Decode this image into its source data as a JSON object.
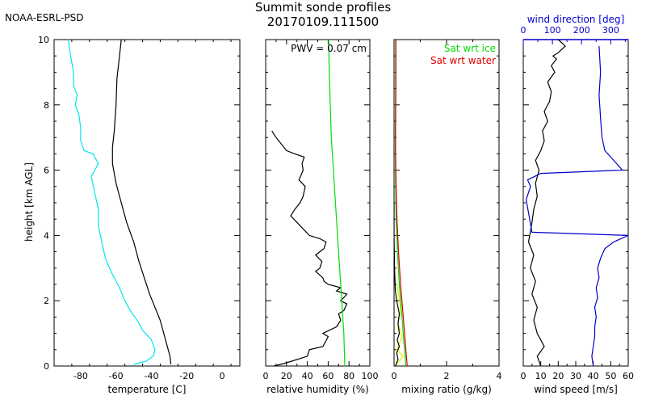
{
  "header": {
    "org_label": "NOAA-ESRL-PSD",
    "title_line1": "Summit sonde profiles",
    "title_line2": "20170109.111500"
  },
  "colors": {
    "axis": "#000000",
    "dewpoint": "#00e5ee",
    "sat_ice": "#00dd00",
    "sat_water": "#dd0000",
    "mixing": "#e8e800",
    "wind_dir": "#0000cc"
  },
  "chart_data": [
    {
      "type": "line",
      "xlabel": "temperature [C]",
      "ylabel": "height [km AGL]",
      "xlim": [
        -95,
        10
      ],
      "ylim": [
        0,
        10
      ],
      "xticks": [
        -80,
        -60,
        -40,
        -20,
        0
      ],
      "yticks": [
        0,
        2,
        4,
        6,
        8,
        10
      ],
      "series": [
        {
          "color": "#000000",
          "x": [
            -29,
            -29.5,
            -31,
            -33,
            -35,
            -38,
            -41,
            -44,
            -47,
            -50,
            -54,
            -57,
            -60,
            -62,
            -62,
            -61,
            -60,
            -59.5,
            -58,
            -57
          ],
          "y": [
            0.05,
            0.3,
            0.6,
            1.0,
            1.4,
            1.8,
            2.2,
            2.7,
            3.2,
            3.8,
            4.4,
            5.0,
            5.6,
            6.2,
            6.7,
            7.2,
            8.0,
            8.8,
            9.5,
            10.0
          ]
        },
        {
          "color": "#00e5ee",
          "x": [
            -50,
            -43,
            -39,
            -38,
            -40,
            -45,
            -48,
            -52,
            -55,
            -58,
            -62,
            -66,
            -68,
            -70,
            -70,
            -72,
            -74,
            -70,
            -73,
            -78,
            -80,
            -80,
            -81,
            -83,
            -82,
            -84,
            -84,
            -85,
            -86,
            -87
          ],
          "y": [
            0.05,
            0.15,
            0.3,
            0.5,
            0.8,
            1.1,
            1.4,
            1.7,
            2.0,
            2.4,
            2.8,
            3.3,
            3.8,
            4.3,
            4.8,
            5.3,
            5.8,
            6.2,
            6.5,
            6.6,
            6.9,
            7.3,
            7.7,
            8.0,
            8.3,
            8.6,
            9.0,
            9.3,
            9.6,
            10.0
          ]
        }
      ]
    },
    {
      "type": "line",
      "xlabel": "relative humidity (%)",
      "annotation": "PWV = 0.07 cm",
      "xlim": [
        0,
        100
      ],
      "ylim": [
        0,
        10
      ],
      "xticks": [
        0,
        20,
        40,
        60,
        80,
        100
      ],
      "xticklabels": [
        "0",
        "20",
        "40",
        "60",
        "80",
        "100"
      ],
      "series": [
        {
          "color": "#000000",
          "x": [
            8,
            20,
            40,
            42,
            55,
            60,
            55,
            68,
            72,
            70,
            75,
            78,
            72,
            75,
            78,
            68,
            72,
            60,
            56,
            55,
            48,
            52,
            54,
            48,
            56,
            58,
            52,
            42,
            36,
            30,
            24,
            28,
            33,
            36,
            38,
            32,
            36,
            35,
            37,
            28,
            20,
            10,
            6
          ],
          "y": [
            0.0,
            0.1,
            0.3,
            0.5,
            0.6,
            0.9,
            1.0,
            1.2,
            1.4,
            1.6,
            1.7,
            1.9,
            2.0,
            2.1,
            2.2,
            2.3,
            2.4,
            2.5,
            2.6,
            2.7,
            2.9,
            3.0,
            3.2,
            3.4,
            3.6,
            3.8,
            3.9,
            4.0,
            4.2,
            4.4,
            4.6,
            4.8,
            5.0,
            5.2,
            5.5,
            5.7,
            6.0,
            6.2,
            6.4,
            6.5,
            6.6,
            7.0,
            7.2
          ]
        },
        {
          "color": "#00dd00",
          "x": [
            76,
            75,
            73,
            71,
            69,
            67,
            65,
            63,
            62,
            61,
            60.5
          ],
          "y": [
            0,
            1,
            2,
            3,
            4,
            5,
            6,
            7,
            8,
            9,
            10
          ]
        }
      ]
    },
    {
      "type": "line",
      "xlabel": "mixing ratio (g/kg)",
      "legend": [
        "Sat wrt ice",
        "Sat wrt water"
      ],
      "xlim": [
        0,
        4
      ],
      "ylim": [
        0,
        10
      ],
      "xticks": [
        0,
        2,
        4
      ],
      "series": [
        {
          "name": "Sat wrt ice",
          "color": "#00dd00",
          "x": [
            0.45,
            0.4,
            0.3,
            0.2,
            0.13,
            0.08,
            0.06,
            0.05,
            0.05,
            0.06,
            0.06
          ],
          "y": [
            0,
            0.5,
            1.5,
            2.5,
            3.5,
            4.5,
            5.5,
            6.5,
            7.5,
            8.5,
            10
          ]
        },
        {
          "name": "Sat wrt water",
          "color": "#dd0000",
          "x": [
            0.5,
            0.45,
            0.35,
            0.25,
            0.17,
            0.11,
            0.08,
            0.06,
            0.06,
            0.07,
            0.07
          ],
          "y": [
            0,
            0.5,
            1.5,
            2.5,
            3.5,
            4.5,
            5.5,
            6.5,
            7.5,
            8.5,
            10
          ]
        },
        {
          "color": "#e8e800",
          "x": [
            0.05,
            0.35,
            0.1,
            0.3,
            0.15,
            0.25,
            0.2,
            0.1
          ],
          "y": [
            0,
            0.3,
            0.5,
            0.9,
            1.3,
            1.7,
            2.1,
            2.5
          ]
        },
        {
          "color": "#000000",
          "x": [
            0.05,
            0.15,
            0.1,
            0.2,
            0.12,
            0.2,
            0.15,
            0.2,
            0.1,
            0.05,
            0.02,
            0.0,
            0.0
          ],
          "y": [
            0.0,
            0.2,
            0.4,
            0.6,
            0.8,
            1.0,
            1.3,
            1.6,
            2.0,
            2.3,
            3.0,
            4.0,
            5.0
          ]
        }
      ]
    },
    {
      "type": "line",
      "xlabel": "wind speed [m/s]",
      "xlim": [
        0,
        60
      ],
      "ylim": [
        0,
        10
      ],
      "xticks": [
        0,
        10,
        20,
        30,
        40,
        50,
        60
      ],
      "top_axis": {
        "label": "wind direction [deg]",
        "xlim": [
          0,
          360
        ],
        "ticks": [
          0,
          100,
          200,
          300
        ]
      },
      "series": [
        {
          "color": "#000000",
          "x": [
            10,
            8,
            12,
            8,
            6,
            8,
            5,
            7,
            4,
            6,
            3,
            4,
            5,
            6,
            8,
            7,
            9,
            7,
            10,
            12,
            11,
            14,
            12,
            15,
            16,
            14,
            18,
            16,
            19,
            17,
            20,
            22,
            24,
            22,
            20
          ],
          "y": [
            0,
            0.3,
            0.6,
            1.0,
            1.4,
            1.8,
            2.2,
            2.6,
            3.0,
            3.4,
            3.8,
            4.1,
            4.4,
            4.8,
            5.2,
            5.6,
            6.0,
            6.3,
            6.6,
            6.9,
            7.2,
            7.5,
            7.8,
            8.1,
            8.4,
            8.7,
            9.0,
            9.2,
            9.4,
            9.5,
            9.6,
            9.7,
            9.8,
            9.9,
            10.0
          ]
        },
        {
          "color": "#0000cc",
          "x": [
            240,
            235,
            240,
            245,
            245,
            250,
            245,
            255,
            250,
            260,
            255,
            265,
            280,
            310,
            360,
            30,
            20,
            10,
            25,
            15,
            60,
            340,
            320,
            300,
            280,
            270,
            265,
            260,
            265,
            260
          ],
          "y": [
            0,
            0.3,
            0.6,
            0.9,
            1.2,
            1.5,
            1.8,
            2.1,
            2.4,
            2.7,
            3.0,
            3.3,
            3.6,
            3.8,
            4.0,
            4.1,
            4.6,
            5.1,
            5.5,
            5.7,
            5.9,
            6.0,
            6.2,
            6.4,
            6.6,
            7.0,
            7.6,
            8.3,
            9.0,
            9.8
          ]
        }
      ]
    }
  ]
}
